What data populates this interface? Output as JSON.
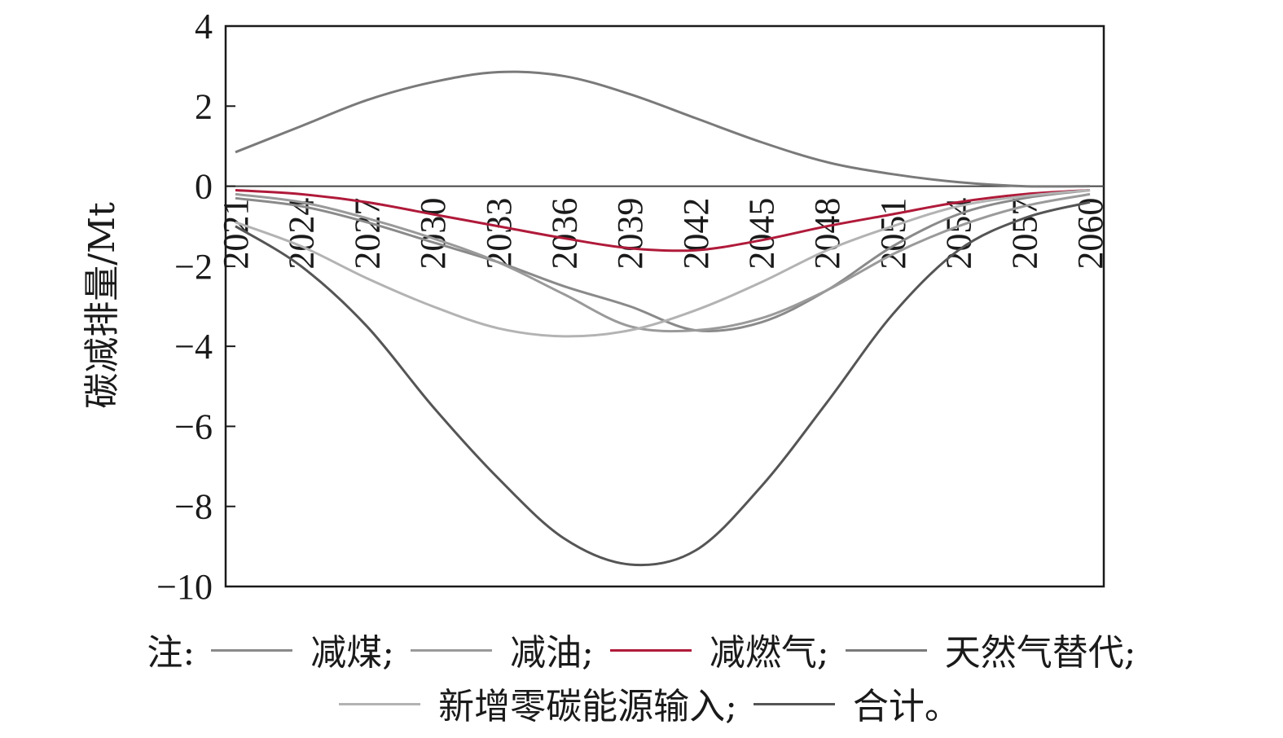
{
  "chart_data": {
    "type": "line",
    "title": "",
    "xlabel": "",
    "ylabel": "碳减排量/Mt",
    "ylim": [
      -10,
      4
    ],
    "yticks": [
      4,
      2,
      0,
      -2,
      -4,
      -6,
      -8,
      -10
    ],
    "ytick_labels": [
      "4",
      "2",
      "0",
      "−2",
      "−4",
      "−6",
      "−8",
      "−10"
    ],
    "xlim": [
      2021,
      2060
    ],
    "xticks": [
      2021,
      2024,
      2027,
      2030,
      2033,
      2036,
      2039,
      2042,
      2045,
      2048,
      2051,
      2054,
      2057,
      2060
    ],
    "x": [
      2021,
      2024,
      2027,
      2030,
      2033,
      2036,
      2039,
      2042,
      2045,
      2048,
      2051,
      2054,
      2057,
      2060
    ],
    "grid": false,
    "legend_position": "bottom",
    "series": [
      {
        "name": "减煤",
        "color": "#8a8a8a",
        "values": [
          -0.3,
          -0.5,
          -0.9,
          -1.4,
          -1.9,
          -2.5,
          -3.0,
          -3.6,
          -3.4,
          -2.6,
          -1.5,
          -0.7,
          -0.3,
          -0.1
        ]
      },
      {
        "name": "减油",
        "color": "#9a9a9a",
        "values": [
          -0.2,
          -0.4,
          -0.8,
          -1.3,
          -1.9,
          -2.7,
          -3.5,
          -3.6,
          -3.3,
          -2.6,
          -1.7,
          -1.0,
          -0.5,
          -0.2
        ]
      },
      {
        "name": "减燃气",
        "color": "#b01a3a",
        "values": [
          -0.1,
          -0.2,
          -0.4,
          -0.7,
          -1.0,
          -1.3,
          -1.55,
          -1.6,
          -1.35,
          -1.0,
          -0.7,
          -0.4,
          -0.2,
          -0.1
        ]
      },
      {
        "name": "天然气替代",
        "color": "#7a7a7a",
        "values": [
          0.85,
          1.5,
          2.15,
          2.6,
          2.85,
          2.75,
          2.3,
          1.7,
          1.1,
          0.6,
          0.3,
          0.1,
          0.0,
          0.0
        ]
      },
      {
        "name": "新增零碳能源输入",
        "color": "#b3b3b3",
        "values": [
          -0.9,
          -1.5,
          -2.3,
          -3.0,
          -3.55,
          -3.75,
          -3.6,
          -3.1,
          -2.4,
          -1.6,
          -1.0,
          -0.5,
          -0.25,
          -0.1
        ]
      },
      {
        "name": "合计",
        "color": "#555555",
        "values": [
          -1.0,
          -2.0,
          -3.5,
          -5.5,
          -7.3,
          -8.8,
          -9.45,
          -9.1,
          -7.5,
          -5.4,
          -3.2,
          -1.6,
          -0.8,
          -0.4
        ]
      }
    ]
  },
  "legend": {
    "note_label": "注:",
    "row1": [
      {
        "text": "减煤;",
        "color": "#8a8a8a"
      },
      {
        "text": "减油;",
        "color": "#9a9a9a"
      },
      {
        "text": "减燃气;",
        "color": "#b01a3a"
      },
      {
        "text": "天然气替代;",
        "color": "#7a7a7a"
      }
    ],
    "row2": [
      {
        "text": "新增零碳能源输入;",
        "color": "#b3b3b3"
      },
      {
        "text": "合计。",
        "color": "#555555"
      }
    ]
  }
}
